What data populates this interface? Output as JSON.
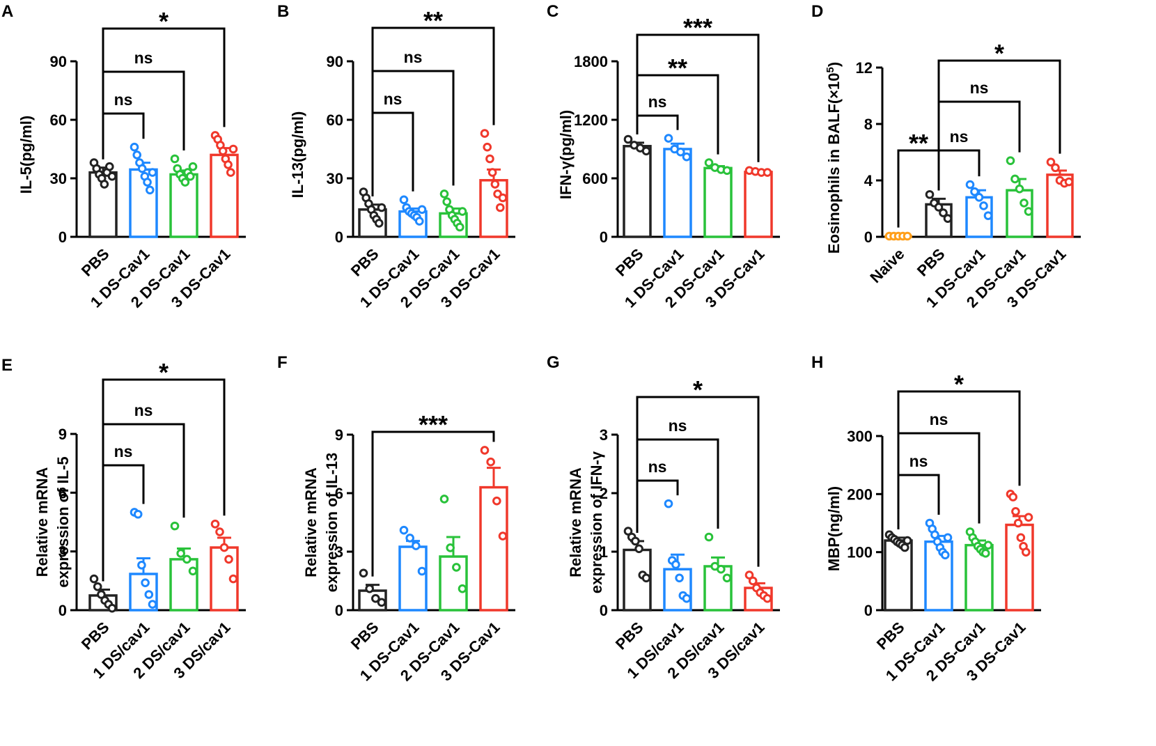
{
  "colors": {
    "PBS": "#222222",
    "Naive": "#ff9f1a",
    "1": "#1e88ff",
    "2": "#29c23a",
    "3": "#f0382b"
  },
  "chart_data": [
    {
      "panel": "A",
      "type": "bar",
      "ylabel": [
        "IL-5(pg/ml)"
      ],
      "yticks": [
        0,
        30,
        60,
        90
      ],
      "ylim": [
        0,
        90
      ],
      "categories": [
        "PBS",
        "1 DS-Cav1",
        "2 DS-Cav1",
        "3 DS-Cav1"
      ],
      "groups": [
        "PBS",
        "1",
        "2",
        "3"
      ],
      "values": [
        33,
        34.5,
        32,
        42
      ],
      "errors": [
        2.5,
        3.5,
        2,
        3.5
      ],
      "points": [
        [
          38,
          35,
          32,
          30,
          27,
          33,
          36,
          31
        ],
        [
          46,
          42,
          38,
          35,
          31,
          28,
          24,
          33
        ],
        [
          40,
          35,
          32,
          30,
          28,
          33,
          31,
          36
        ],
        [
          52,
          50,
          47,
          44,
          40,
          37,
          33,
          45
        ]
      ],
      "comparisons": [
        {
          "from": 0,
          "to": 1,
          "label": "ns",
          "level": 0
        },
        {
          "from": 0,
          "to": 2,
          "label": "ns",
          "level": 1
        },
        {
          "from": 0,
          "to": 3,
          "label": "*",
          "level": 2
        }
      ]
    },
    {
      "panel": "B",
      "type": "bar",
      "ylabel": [
        "IL-13(pg/ml)"
      ],
      "yticks": [
        0,
        30,
        60,
        90
      ],
      "ylim": [
        0,
        90
      ],
      "categories": [
        "PBS",
        "1 DS-Cav1",
        "2 DS-Cav1",
        "3 DS-Cav1"
      ],
      "groups": [
        "PBS",
        "1",
        "2",
        "3"
      ],
      "values": [
        14,
        13,
        12,
        29
      ],
      "errors": [
        2.5,
        1.5,
        2.5,
        5.5
      ],
      "points": [
        [
          23,
          20,
          17,
          14,
          11,
          9,
          7,
          15
        ],
        [
          19,
          15,
          13,
          12,
          11,
          10,
          8,
          14
        ],
        [
          22,
          18,
          14,
          11,
          9,
          7,
          5,
          13
        ],
        [
          53,
          46,
          40,
          33,
          27,
          22,
          15,
          20
        ]
      ],
      "comparisons": [
        {
          "from": 0,
          "to": 1,
          "label": "ns",
          "level": 0
        },
        {
          "from": 0,
          "to": 2,
          "label": "ns",
          "level": 1
        },
        {
          "from": 0,
          "to": 3,
          "label": "**",
          "level": 2
        }
      ]
    },
    {
      "panel": "C",
      "type": "bar",
      "ylabel": [
        "IFN-γ(pg/ml)"
      ],
      "yticks": [
        0,
        600,
        1200,
        1800
      ],
      "ylim": [
        0,
        1800
      ],
      "categories": [
        "PBS",
        "1 DS-Cav1",
        "2 DS-Cav1",
        "3 DS-Cav1"
      ],
      "groups": [
        "PBS",
        "1",
        "2",
        "3"
      ],
      "values": [
        930,
        900,
        705,
        665
      ],
      "errors": [
        35,
        55,
        20,
        10
      ],
      "points": [
        [
          1000,
          940,
          910,
          880
        ],
        [
          1010,
          900,
          870,
          820
        ],
        [
          760,
          710,
          690,
          680
        ],
        [
          680,
          670,
          660,
          660
        ]
      ],
      "comparisons": [
        {
          "from": 0,
          "to": 1,
          "label": "ns",
          "level": 0
        },
        {
          "from": 0,
          "to": 2,
          "label": "**",
          "level": 1
        },
        {
          "from": 0,
          "to": 3,
          "label": "***",
          "level": 2
        }
      ]
    },
    {
      "panel": "D",
      "type": "bar",
      "ylabel": [
        "Eosinophils in BALF(×10",
        "5",
        ")"
      ],
      "yticks": [
        0,
        4,
        8,
        12
      ],
      "ylim": [
        0,
        12
      ],
      "categories": [
        "Naive",
        "PBS",
        "1 DS-Cav1",
        "2 DS-Cav1",
        "3 DS-Cav1"
      ],
      "groups": [
        "Naive",
        "PBS",
        "1",
        "2",
        "3"
      ],
      "values": [
        0.05,
        2.3,
        2.8,
        3.3,
        4.4
      ],
      "errors": [
        0.02,
        0.4,
        0.5,
        0.8,
        0.3
      ],
      "points": [
        [
          0.05,
          0.05,
          0.05,
          0.05,
          0.05
        ],
        [
          3.0,
          2.4,
          2.1,
          1.7,
          1.3
        ],
        [
          3.7,
          3.2,
          2.8,
          2.2,
          1.5
        ],
        [
          5.4,
          4.1,
          3.4,
          2.4,
          1.8
        ],
        [
          5.3,
          4.9,
          4.0,
          3.8,
          3.9
        ]
      ],
      "comparisons": [
        {
          "from": 0,
          "to": 1,
          "label": "**",
          "level": 0
        },
        {
          "from": 1,
          "to": 2,
          "label": "ns",
          "level": 0
        },
        {
          "from": 1,
          "to": 3,
          "label": "ns",
          "level": 1
        },
        {
          "from": 1,
          "to": 4,
          "label": "*",
          "level": 2
        }
      ]
    },
    {
      "panel": "E",
      "type": "bar",
      "ylabel": [
        "Relative mRNA",
        "expression of IL-5"
      ],
      "yticks": [
        0,
        3,
        6,
        9
      ],
      "ylim": [
        0,
        9
      ],
      "categories": [
        "PBS",
        "1 DS/cav1",
        "2 DS/cav1",
        "3 DS/cav1"
      ],
      "groups": [
        "PBS",
        "1",
        "2",
        "3"
      ],
      "values": [
        0.75,
        1.85,
        2.6,
        3.2
      ],
      "errors": [
        0.3,
        0.8,
        0.55,
        0.5
      ],
      "points": [
        [
          1.6,
          1.2,
          0.8,
          0.5,
          0.3,
          0.1
        ],
        [
          5.0,
          4.9,
          2.3,
          1.4,
          0.8,
          0.3
        ],
        [
          4.3,
          2.9,
          2.6,
          2.0
        ],
        [
          4.4,
          4.0,
          3.2,
          2.6,
          1.6
        ]
      ],
      "comparisons": [
        {
          "from": 0,
          "to": 1,
          "label": "ns",
          "level": 0
        },
        {
          "from": 0,
          "to": 2,
          "label": "ns",
          "level": 1
        },
        {
          "from": 0,
          "to": 3,
          "label": "*",
          "level": 2
        }
      ]
    },
    {
      "panel": "F",
      "type": "bar",
      "ylabel": [
        "Relative mRNA",
        "expression of IL-13"
      ],
      "yticks": [
        0,
        3,
        6,
        9
      ],
      "ylim": [
        0,
        9
      ],
      "categories": [
        "PBS",
        "1 DS-Cav1",
        "2 DS-Cav1",
        "3 DS-Cav1"
      ],
      "groups": [
        "PBS",
        "1",
        "2",
        "3"
      ],
      "values": [
        1.0,
        3.25,
        2.75,
        6.3
      ],
      "errors": [
        0.3,
        0.3,
        1.0,
        1.0
      ],
      "points": [
        [
          1.9,
          1.1,
          0.6,
          0.4
        ],
        [
          4.1,
          3.7,
          3.3,
          2.0
        ],
        [
          5.7,
          3.2,
          2.2,
          1.1
        ],
        [
          8.2,
          7.6,
          5.6,
          3.8
        ]
      ],
      "comparisons": [
        {
          "from": 0,
          "to": 3,
          "label": "***",
          "level": 0
        }
      ]
    },
    {
      "panel": "G",
      "type": "bar",
      "ylabel": [
        "Relative mRNA",
        "expression of IFN-γ"
      ],
      "yticks": [
        0,
        1,
        2,
        3
      ],
      "ylim": [
        0,
        3
      ],
      "categories": [
        "PBS",
        "1 DS/cav1",
        "2 DS/cav1",
        "3 DS/cav1"
      ],
      "groups": [
        "PBS",
        "1",
        "2",
        "3"
      ],
      "values": [
        1.03,
        0.7,
        0.75,
        0.38
      ],
      "errors": [
        0.15,
        0.25,
        0.15,
        0.08
      ],
      "points": [
        [
          1.35,
          1.25,
          1.18,
          1.05,
          0.6,
          0.55
        ],
        [
          1.82,
          0.85,
          0.78,
          0.55,
          0.25,
          0.2
        ],
        [
          1.25,
          0.75,
          0.7,
          0.55
        ],
        [
          0.6,
          0.5,
          0.38,
          0.3,
          0.25,
          0.2
        ]
      ],
      "comparisons": [
        {
          "from": 0,
          "to": 1,
          "label": "ns",
          "level": 0
        },
        {
          "from": 0,
          "to": 2,
          "label": "ns",
          "level": 1
        },
        {
          "from": 0,
          "to": 3,
          "label": "*",
          "level": 2
        }
      ]
    },
    {
      "panel": "H",
      "type": "bar",
      "ylabel": [
        "MBP(ng/ml)"
      ],
      "yticks": [
        0,
        100,
        200,
        300
      ],
      "ylim": [
        0,
        300
      ],
      "categories": [
        "PBS",
        "1 DS-Cav1",
        "2 DS-Cav1",
        "3 DS-Cav1"
      ],
      "groups": [
        "PBS",
        "1",
        "2",
        "3"
      ],
      "values": [
        120,
        118,
        112,
        147
      ],
      "errors": [
        5,
        10,
        8,
        15
      ],
      "points": [
        [
          130,
          125,
          122,
          118,
          115,
          112,
          108,
          120
        ],
        [
          150,
          140,
          130,
          118,
          108,
          100,
          95,
          125
        ],
        [
          135,
          125,
          118,
          110,
          105,
          100,
          98,
          112
        ],
        [
          200,
          195,
          170,
          150,
          125,
          110,
          100,
          160
        ]
      ],
      "comparisons": [
        {
          "from": 0,
          "to": 1,
          "label": "ns",
          "level": 0
        },
        {
          "from": 0,
          "to": 2,
          "label": "ns",
          "level": 1
        },
        {
          "from": 0,
          "to": 3,
          "label": "*",
          "level": 2
        }
      ]
    }
  ]
}
